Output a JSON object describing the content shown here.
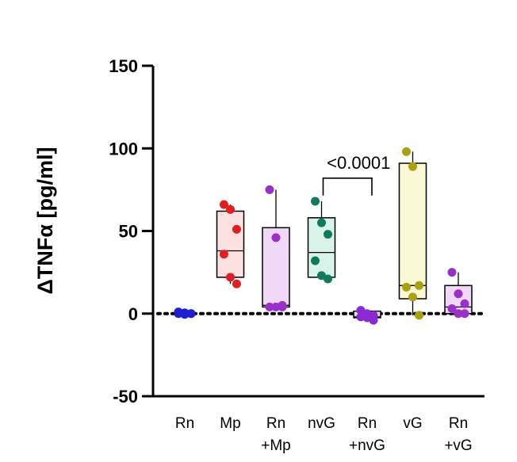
{
  "chart_data": {
    "type": "box",
    "ylabel": "ΔTNFα  [pg/ml]",
    "ylim": [
      -50,
      150
    ],
    "yticks": [
      -50,
      0,
      50,
      100,
      150
    ],
    "reference_line": {
      "y": 0,
      "style": "dotted"
    },
    "categories": [
      {
        "label_lines": [
          "Rn"
        ],
        "color": "#1f1fd1",
        "fill": "#1f1fd1",
        "points": [
          1,
          0.5,
          0,
          0,
          -0.5,
          0
        ]
      },
      {
        "label_lines": [
          "Mp"
        ],
        "color": "#e02020",
        "fill": "#fde0e0",
        "box": {
          "min": 18,
          "q1": 22,
          "median": 38,
          "q3": 62,
          "max": 66
        },
        "points": [
          66,
          63,
          51,
          36,
          22,
          18
        ]
      },
      {
        "label_lines": [
          "Rn",
          "+Mp"
        ],
        "color": "#9b30c8",
        "fill": "#f0d9f8",
        "box": {
          "min": 4,
          "q1": 4,
          "median": 5,
          "q3": 52,
          "max": 75
        },
        "points": [
          75,
          46,
          5,
          4,
          4,
          4
        ]
      },
      {
        "label_lines": [
          "nvG"
        ],
        "color": "#117a5e",
        "fill": "#d8f3e8",
        "box": {
          "min": 21,
          "q1": 22,
          "median": 37,
          "q3": 58,
          "max": 68
        },
        "points": [
          68,
          55,
          48,
          32,
          23,
          21
        ]
      },
      {
        "label_lines": [
          "Rn",
          "+nvG"
        ],
        "color": "#8a2ad0",
        "fill": "#e9d5f7",
        "box": {
          "min": -4,
          "q1": -2.5,
          "median": -2,
          "q3": 1.5,
          "max": 2
        },
        "points": [
          2,
          0,
          -1,
          -2,
          -2.5,
          -4
        ]
      },
      {
        "label_lines": [
          "vG"
        ],
        "color": "#a9a10e",
        "fill": "#fbf8d6",
        "box": {
          "min": -1,
          "q1": 9,
          "median": 17,
          "q3": 91,
          "max": 98
        },
        "points": [
          98,
          89,
          17,
          16,
          10,
          -1
        ]
      },
      {
        "label_lines": [
          "Rn",
          "+vG"
        ],
        "color": "#9b30c8",
        "fill": "#f0d9f8",
        "box": {
          "min": 0,
          "q1": 0,
          "median": 4,
          "q3": 17,
          "max": 25
        },
        "points": [
          25,
          12,
          6,
          3,
          0,
          0
        ]
      }
    ],
    "annotations": [
      {
        "text": "<0.0001",
        "from_category": 3,
        "to_category": 4,
        "y": 82
      }
    ]
  }
}
